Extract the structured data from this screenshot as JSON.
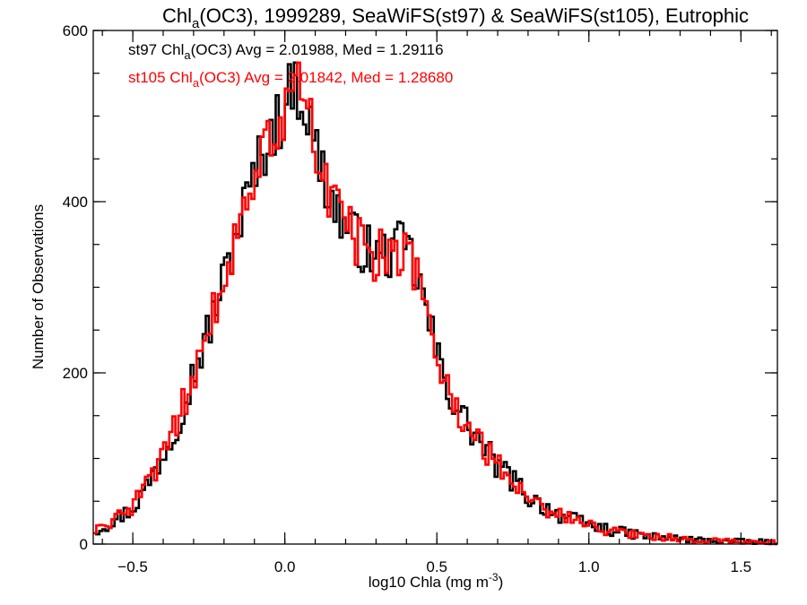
{
  "chart_data": {
    "type": "histogram-step",
    "title": {
      "prefix": "Chl",
      "subscript": "a",
      "suffix": "(OC3), 1999289, SeaWiFS(st97) & SeaWiFS(st105), Eutrophic"
    },
    "xlabel": {
      "prefix": "log10 Chla (mg m",
      "superscript": "-3",
      "suffix": ")"
    },
    "ylabel": "Number of Observations",
    "xlim": [
      -0.63,
      1.62
    ],
    "ylim": [
      0,
      600
    ],
    "x_ticks": [
      -0.5,
      0.0,
      0.5,
      1.0,
      1.5
    ],
    "x_tick_labels": [
      "−0.5",
      "0.0",
      "0.5",
      "1.0",
      "1.5"
    ],
    "x_minor_step": 0.1,
    "y_ticks": [
      0,
      200,
      400,
      600
    ],
    "y_tick_labels": [
      "0",
      "200",
      "400",
      "600"
    ],
    "y_minor_step": 50,
    "bin_width": 0.01,
    "grid": false,
    "legend_position": "top-left",
    "curve_points": {
      "x": [
        -0.63,
        -0.6,
        -0.55,
        -0.5,
        -0.45,
        -0.4,
        -0.35,
        -0.3,
        -0.25,
        -0.2,
        -0.15,
        -0.1,
        -0.05,
        0.0,
        0.03,
        0.06,
        0.1,
        0.15,
        0.2,
        0.25,
        0.3,
        0.35,
        0.4,
        0.45,
        0.5,
        0.55,
        0.6,
        0.65,
        0.7,
        0.75,
        0.8,
        0.85,
        0.9,
        0.95,
        1.0,
        1.05,
        1.1,
        1.2,
        1.3,
        1.4,
        1.5,
        1.62
      ],
      "y": [
        15,
        20,
        30,
        42,
        70,
        105,
        145,
        200,
        250,
        310,
        375,
        430,
        480,
        505,
        545,
        520,
        465,
        405,
        370,
        350,
        335,
        340,
        350,
        295,
        220,
        170,
        140,
        115,
        90,
        75,
        55,
        45,
        35,
        28,
        22,
        18,
        14,
        9,
        6,
        4,
        3,
        2
      ]
    },
    "series": [
      {
        "name": "st97",
        "color": "#000000",
        "seed": 97
      },
      {
        "name": "st105",
        "color": "#ff0000",
        "seed": 105
      }
    ],
    "legend": [
      {
        "series": "st97",
        "color": "#000000",
        "prefix": "st97 Chl",
        "subscript": "a",
        "suffix": "(OC3) Avg = 2.01988, Med = 1.29116"
      },
      {
        "series": "st105",
        "color": "#ff0000",
        "prefix": "st105 Chl",
        "subscript": "a",
        "suffix": "(OC3) Avg = 2.01842, Med = 1.28680"
      }
    ]
  }
}
